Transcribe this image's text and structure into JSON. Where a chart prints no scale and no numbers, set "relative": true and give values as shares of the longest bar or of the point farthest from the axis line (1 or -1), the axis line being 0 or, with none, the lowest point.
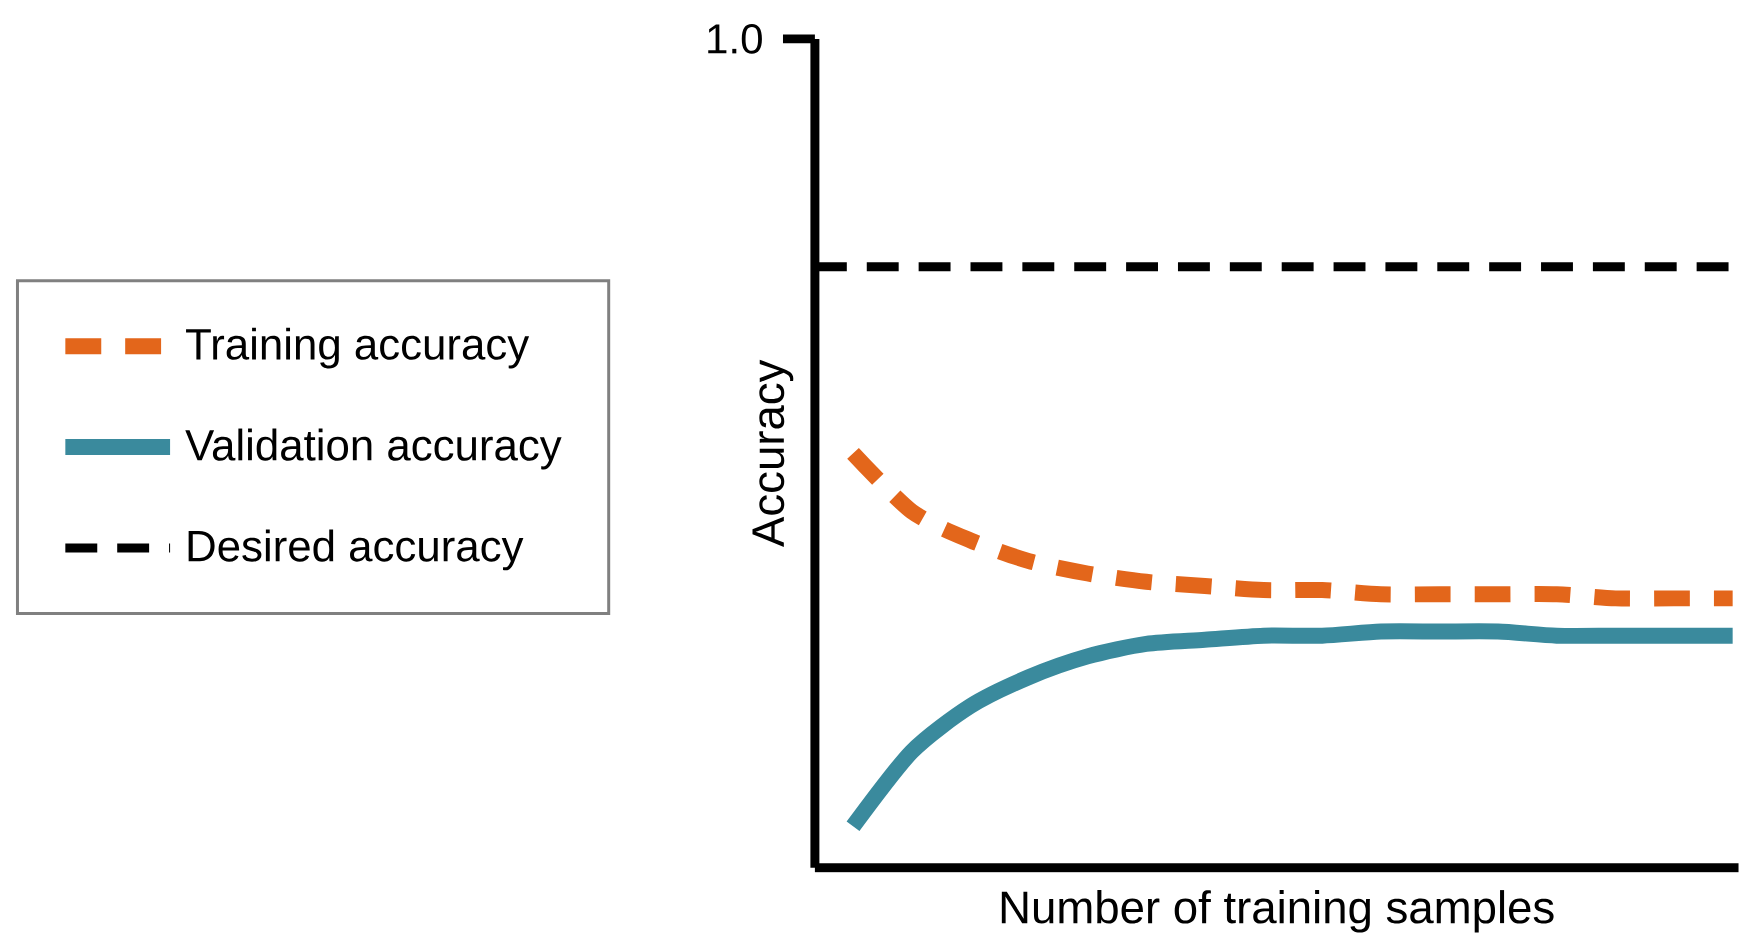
{
  "chart_data": {
    "type": "line",
    "xlabel": "Number of training samples",
    "ylabel": "Accuracy",
    "categories": [
      null,
      null,
      null,
      null,
      null,
      null,
      null,
      null,
      null,
      null,
      null,
      null,
      null,
      null,
      null,
      null
    ],
    "series": [
      {
        "name": "Training accuracy",
        "color": "#e3661b",
        "line_style": "dashed",
        "values": [
          1.0,
          0.86,
          0.79,
          0.74,
          0.71,
          0.69,
          0.68,
          0.67,
          0.67,
          0.66,
          0.66,
          0.66,
          0.66,
          0.65,
          0.65,
          0.65
        ]
      },
      {
        "name": "Validation accuracy",
        "color": "#3a8a9d",
        "line_style": "solid",
        "values": [
          0.1,
          0.28,
          0.39,
          0.46,
          0.51,
          0.54,
          0.55,
          0.56,
          0.56,
          0.57,
          0.57,
          0.57,
          0.56,
          0.56,
          0.56,
          0.56
        ]
      }
    ],
    "ref_lines": [
      {
        "axis": "y",
        "value": 1.45,
        "label": "Desired accuracy",
        "color": "#000000",
        "line_style": "dashed"
      }
    ],
    "relative": true,
    "annotations": [
      "1.0"
    ],
    "legend": "left"
  }
}
